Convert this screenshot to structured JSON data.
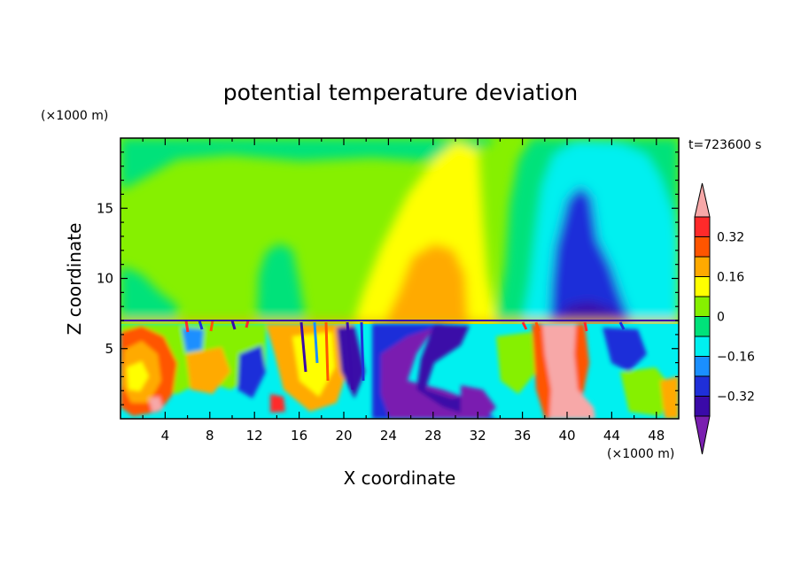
{
  "chart_data": {
    "type": "heatmap",
    "title": "potential temperature deviation",
    "xlabel": "X coordinate",
    "ylabel": "Z coordinate",
    "x_unit_label": "(×1000 m)",
    "y_unit_label": "(×1000 m)",
    "time_label": "t=723600 s",
    "xlim": [
      0,
      50
    ],
    "ylim": [
      0,
      20
    ],
    "x_ticks": [
      4,
      8,
      12,
      16,
      20,
      24,
      28,
      32,
      36,
      40,
      44,
      48
    ],
    "y_ticks": [
      5,
      10,
      15
    ],
    "colorbar": {
      "levels": [
        -0.4,
        -0.32,
        -0.24,
        -0.16,
        -0.08,
        0,
        0.08,
        0.16,
        0.24,
        0.32,
        0.4
      ],
      "tick_labels": [
        {
          "value": 0.32,
          "label": "0.32"
        },
        {
          "value": 0.16,
          "label": "0.16"
        },
        {
          "value": 0,
          "label": "0"
        },
        {
          "value": -0.16,
          "label": "−0.16"
        },
        {
          "value": -0.32,
          "label": "−0.32"
        }
      ],
      "colors": [
        "#7a1fb0",
        "#3a0aa8",
        "#1f2fd9",
        "#1a8fff",
        "#00f0f0",
        "#00e27a",
        "#86f000",
        "#ffff00",
        "#ffaa00",
        "#ff5500",
        "#ff2a2a",
        "#f7a8a8"
      ]
    }
  }
}
